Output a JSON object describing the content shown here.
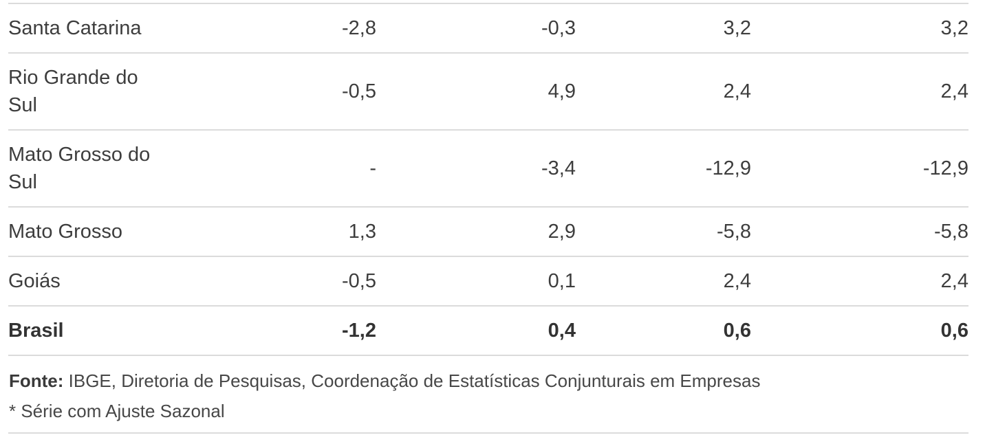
{
  "chart_data": {
    "type": "table",
    "value_alignment": "right",
    "decimal_separator": ",",
    "rows": [
      {
        "region": "Santa Catarina",
        "values": [
          "-2,8",
          "-0,3",
          "3,2",
          "3,2"
        ],
        "bold": false
      },
      {
        "region": "Rio Grande do Sul",
        "values": [
          "-0,5",
          "4,9",
          "2,4",
          "2,4"
        ],
        "bold": false
      },
      {
        "region": "Mato Grosso do Sul",
        "values": [
          "-",
          "-3,4",
          "-12,9",
          "-12,9"
        ],
        "bold": false
      },
      {
        "region": "Mato Grosso",
        "values": [
          "1,3",
          "2,9",
          "-5,8",
          "-5,8"
        ],
        "bold": false
      },
      {
        "region": "Goiás",
        "values": [
          "-0,5",
          "0,1",
          "2,4",
          "2,4"
        ],
        "bold": false
      },
      {
        "region": "Brasil",
        "values": [
          "-1,2",
          "0,4",
          "0,6",
          "0,6"
        ],
        "bold": true
      }
    ]
  },
  "footer": {
    "source_label": "Fonte:",
    "source_text": " IBGE, Diretoria de Pesquisas, Coordenação de Estatísticas Conjunturais em Empresas",
    "note": "* Série com Ajuste Sazonal"
  },
  "colors": {
    "text": "#3d3d3d",
    "divider": "#dbdbdb",
    "background": "#ffffff",
    "footer_text": "#474747"
  }
}
